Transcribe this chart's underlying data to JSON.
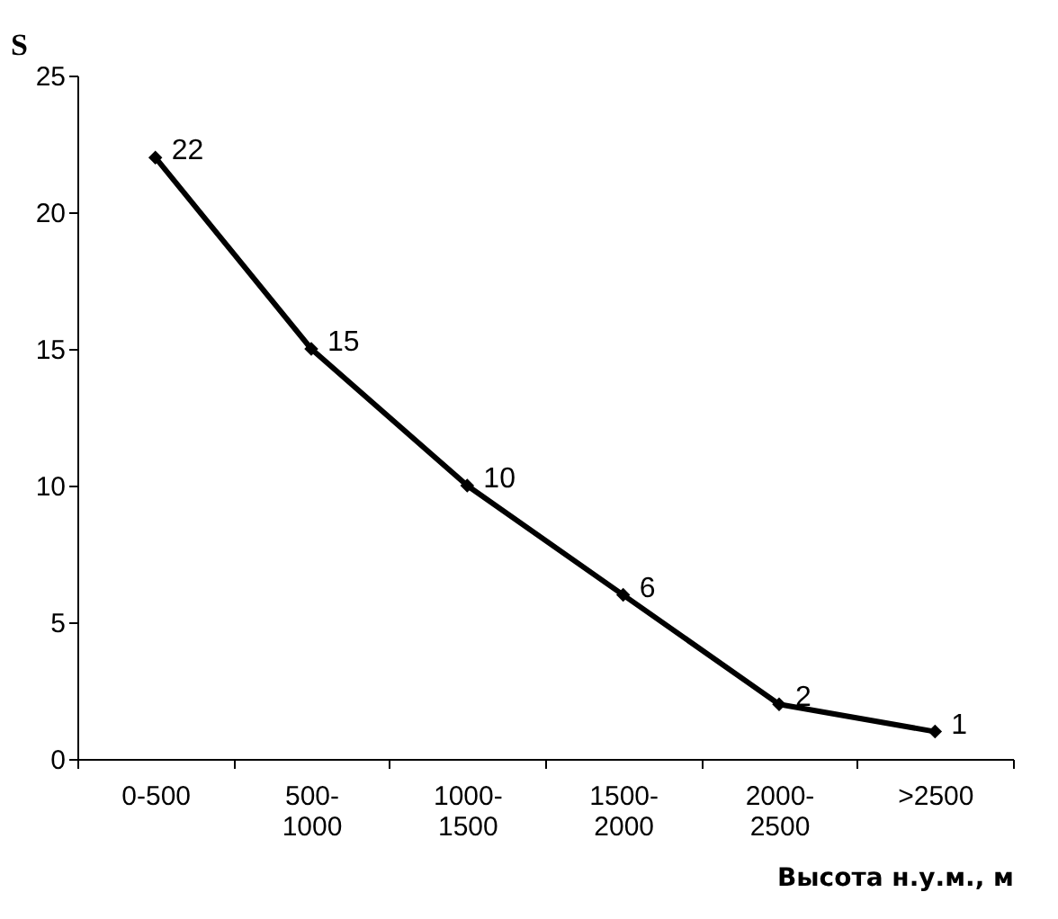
{
  "chart_data": {
    "type": "line",
    "xlabel": "Высота н.у.м., м",
    "ylabel": "S",
    "categories": [
      "0-500",
      "500-1000",
      "1000-1500",
      "1500-2000",
      "2000-2500",
      ">2500"
    ],
    "series": [
      {
        "color": "#000000",
        "values": [
          22,
          15,
          10,
          6,
          2,
          1
        ]
      }
    ],
    "ylim": [
      0,
      25
    ],
    "yticks": [
      0,
      5,
      10,
      15,
      20,
      25
    ],
    "grid": false,
    "marker": "diamond",
    "line_style": "solid",
    "data_labels": true
  }
}
